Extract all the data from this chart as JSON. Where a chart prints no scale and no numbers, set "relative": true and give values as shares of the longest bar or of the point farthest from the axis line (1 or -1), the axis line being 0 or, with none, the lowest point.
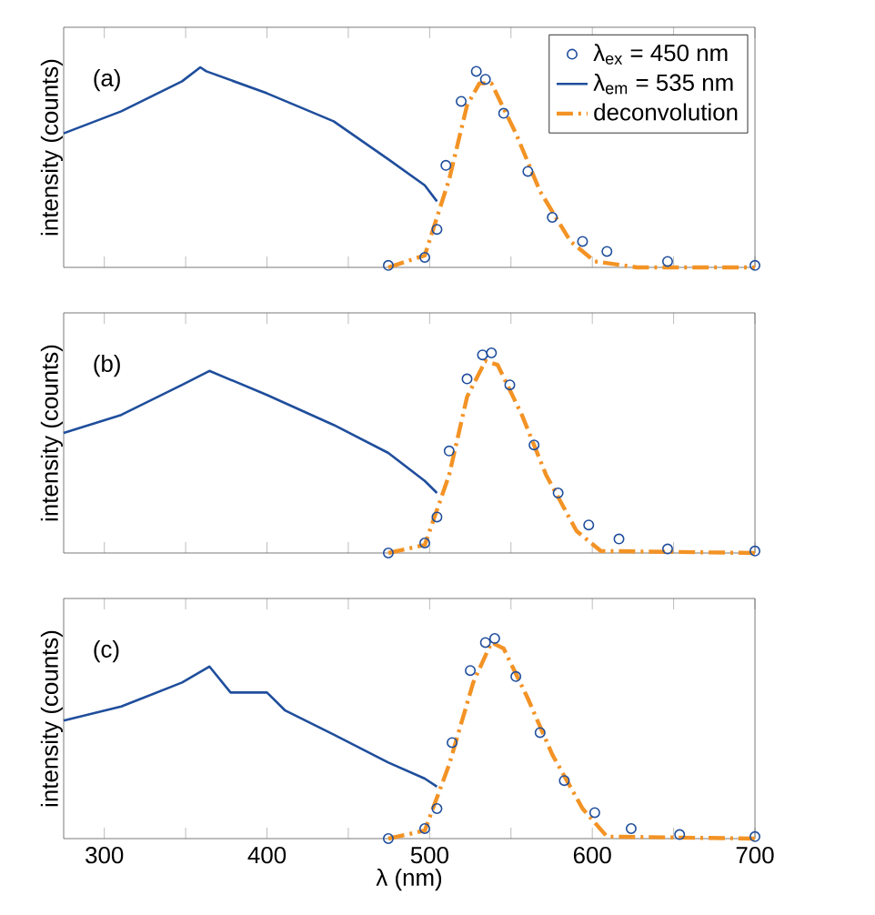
{
  "chart_data": [
    {
      "type": "line",
      "relative": true,
      "ylabel": "intensity (counts)",
      "annotations": [
        "(a)"
      ],
      "xlim": [
        275,
        700
      ],
      "xticks": [
        300,
        {
          "value": 350,
          "label": null
        },
        400,
        {
          "value": 450,
          "label": null
        },
        500,
        {
          "value": 550,
          "label": null
        },
        600,
        {
          "value": 650,
          "label": null
        },
        700
      ],
      "tick_labels": false,
      "legend": "top right",
      "series": [
        {
          "name": "λ$_{ex}$ = 450 nm",
          "type": "scatter",
          "marker": "circle",
          "color": "#1f4e9c",
          "x": [
            474.6,
            497,
            504.5,
            510,
            519.4,
            528.7,
            534.3,
            545.5,
            560.4,
            575.4,
            594,
            609,
            646.3,
            700
          ],
          "values": [
            0.01,
            0.05,
            0.19,
            0.51,
            0.83,
            0.98,
            0.94,
            0.77,
            0.48,
            0.25,
            0.13,
            0.08,
            0.03,
            0.01
          ]
        },
        {
          "name": "λ$_{em}$ = 535 nm",
          "color": "#1f4e9c",
          "x": [
            275,
            310.4,
            347.8,
            359,
            362.7,
            400,
            441,
            474.6,
            497,
            504.5
          ],
          "values": [
            0.67,
            0.78,
            0.93,
            1.0,
            0.98,
            0.87,
            0.73,
            0.54,
            0.41,
            0.33
          ]
        },
        {
          "name": "deconvolution",
          "line_style": "dashdot",
          "color": "#f39325",
          "x": [
            474.6,
            497,
            512,
            523,
            530.6,
            538,
            553,
            567.9,
            586.6,
            601.5,
            627.6,
            700
          ],
          "values": [
            0,
            0.06,
            0.44,
            0.81,
            0.92,
            0.92,
            0.67,
            0.38,
            0.13,
            0.03,
            0,
            0
          ]
        }
      ]
    },
    {
      "type": "line",
      "relative": true,
      "ylabel": "intensity (counts)",
      "annotations": [
        "(b)"
      ],
      "xlim": [
        275,
        700
      ],
      "xticks": [
        300,
        {
          "value": 350,
          "label": null
        },
        400,
        {
          "value": 450,
          "label": null
        },
        500,
        {
          "value": 550,
          "label": null
        },
        600,
        {
          "value": 650,
          "label": null
        },
        700
      ],
      "tick_labels": false,
      "series": [
        {
          "type": "scatter",
          "marker": "circle",
          "color": "#1f4e9c",
          "x": [
            474.6,
            497,
            504.5,
            512,
            523,
            532.5,
            538,
            549.3,
            564.2,
            579,
            597.8,
            616.4,
            646.3,
            700
          ],
          "values": [
            0,
            0.05,
            0.18,
            0.51,
            0.87,
            0.99,
            1.0,
            0.84,
            0.54,
            0.3,
            0.14,
            0.07,
            0.02,
            0.01
          ]
        },
        {
          "color": "#1f4e9c",
          "x": [
            275,
            310.4,
            347.8,
            364.6,
            400,
            441,
            474.6,
            497,
            504.5
          ],
          "values": [
            0.6,
            0.69,
            0.84,
            0.91,
            0.79,
            0.64,
            0.5,
            0.36,
            0.3
          ]
        },
        {
          "line_style": "dashdot",
          "color": "#f39325",
          "x": [
            474.6,
            497,
            512,
            523,
            534.3,
            541.8,
            556.7,
            571.6,
            590.3,
            605.2,
            700
          ],
          "values": [
            0,
            0.04,
            0.39,
            0.78,
            0.96,
            0.94,
            0.69,
            0.39,
            0.11,
            0.01,
            0
          ]
        }
      ]
    },
    {
      "type": "line",
      "relative": true,
      "ylabel": "intensity (counts)",
      "xlabel": "λ (nm)",
      "annotations": [
        "(c)"
      ],
      "xlim": [
        275,
        700
      ],
      "xticks": [
        300,
        {
          "value": 350,
          "label": null
        },
        400,
        {
          "value": 450,
          "label": null
        },
        500,
        {
          "value": 550,
          "label": null
        },
        600,
        {
          "value": 650,
          "label": null
        },
        700
      ],
      "tick_labels": "x",
      "series": [
        {
          "type": "scatter",
          "marker": "circle",
          "color": "#1f4e9c",
          "x": [
            474.6,
            497,
            504.5,
            513.8,
            525,
            534.3,
            540,
            553,
            567.9,
            582.8,
            601.5,
            623.9,
            653.7,
            700
          ],
          "values": [
            0,
            0.05,
            0.15,
            0.48,
            0.84,
            0.98,
            1.0,
            0.81,
            0.53,
            0.29,
            0.13,
            0.05,
            0.02,
            0.01
          ]
        },
        {
          "color": "#1f4e9c",
          "x": [
            275,
            310.4,
            347.8,
            364.6,
            377.6,
            400,
            411.2,
            441,
            474.6,
            497,
            504.5
          ],
          "values": [
            0.59,
            0.66,
            0.78,
            0.86,
            0.73,
            0.73,
            0.64,
            0.52,
            0.38,
            0.3,
            0.26
          ]
        },
        {
          "line_style": "dashdot",
          "color": "#f39325",
          "x": [
            474.6,
            497,
            512,
            526.8,
            538,
            545.5,
            560.4,
            575.4,
            594,
            609,
            700
          ],
          "values": [
            0,
            0.04,
            0.37,
            0.78,
            0.98,
            0.95,
            0.7,
            0.42,
            0.15,
            0.01,
            0
          ]
        }
      ]
    }
  ]
}
